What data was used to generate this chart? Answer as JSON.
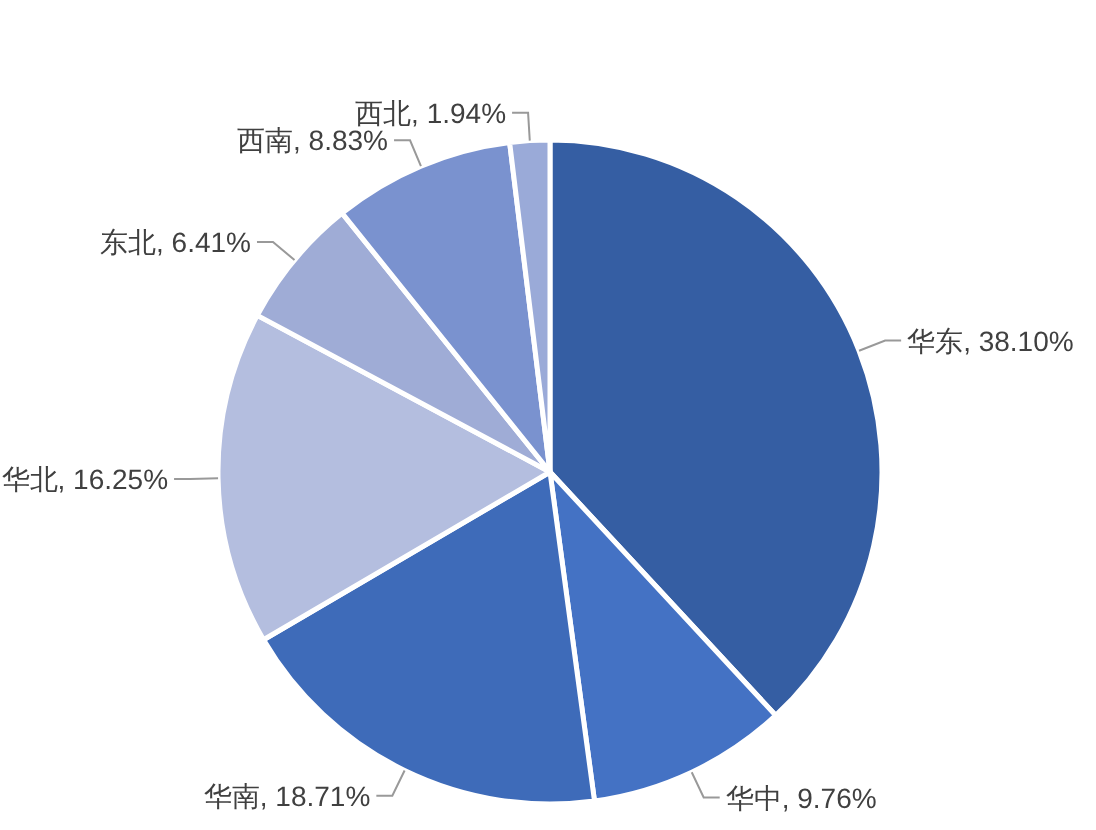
{
  "chart_data": {
    "type": "pie",
    "categories": [
      "华东",
      "华中",
      "华南",
      "华北",
      "东北",
      "西南",
      "西北"
    ],
    "values": [
      38.1,
      9.76,
      18.71,
      16.25,
      6.41,
      8.83,
      1.94
    ],
    "value_labels": [
      "38.10%",
      "9.76%",
      "18.71%",
      "16.25%",
      "6.41%",
      "8.83%",
      "1.94%"
    ],
    "colors": [
      "#355ea3",
      "#4472c4",
      "#3e6bb9",
      "#b4bedf",
      "#9facd6",
      "#7a92cf",
      "#9aaad8"
    ]
  }
}
